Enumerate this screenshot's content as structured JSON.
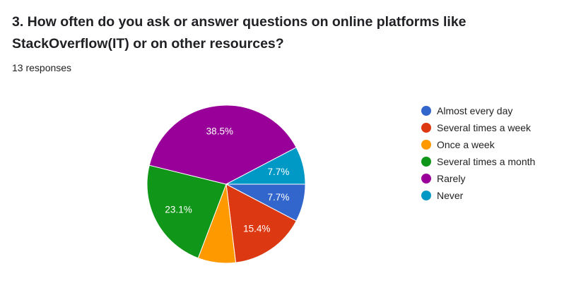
{
  "question": {
    "title": "3. How often do you ask or answer questions on online platforms like StackOverflow(IT) or on other resources?",
    "responses": "13 responses"
  },
  "chart_data": {
    "type": "pie",
    "total": 13,
    "slices": [
      {
        "name": "Almost every day",
        "count": 1,
        "percent": 7.7,
        "label": "7.7%",
        "color": "#3366cc"
      },
      {
        "name": "Several times a week",
        "count": 2,
        "percent": 15.4,
        "label": "15.4%",
        "color": "#dc3912"
      },
      {
        "name": "Once a week",
        "count": 1,
        "percent": 7.7,
        "label": "",
        "color": "#ff9900"
      },
      {
        "name": "Several times a month",
        "count": 3,
        "percent": 23.1,
        "label": "23.1%",
        "color": "#109618"
      },
      {
        "name": "Rarely",
        "count": 5,
        "percent": 38.5,
        "label": "38.5%",
        "color": "#990099"
      },
      {
        "name": "Never",
        "count": 1,
        "percent": 7.7,
        "label": "7.7%",
        "color": "#0099c6"
      }
    ],
    "legend_position": "right"
  }
}
